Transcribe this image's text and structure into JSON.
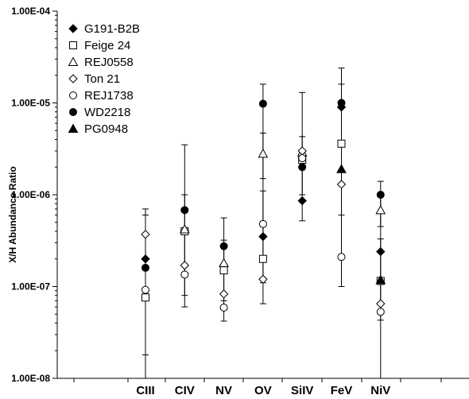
{
  "chart_data": {
    "type": "scatter",
    "ylabel": "X/H Abundance Ratio",
    "xlabel": "",
    "yscale": "log",
    "ylim": [
      1e-08,
      0.0001
    ],
    "y_tick_labels": [
      "1.00E-08",
      "1.00E-07",
      "1.00E-06",
      "1.00E-05",
      "1.00E-04"
    ],
    "categories": [
      "CIII",
      "CIV",
      "NV",
      "OV",
      "SiIV",
      "FeV",
      "NiV"
    ],
    "legend_position": "top-left",
    "error_bars": [
      {
        "category": "CIII",
        "low": 1.8e-08,
        "high": 7e-07
      },
      {
        "category": "CIII",
        "low": 1e-08,
        "high": 6e-07
      },
      {
        "category": "CIV",
        "low": 6e-08,
        "high": 3.5e-06
      },
      {
        "category": "CIV",
        "low": 8e-08,
        "high": 1e-06
      },
      {
        "category": "NV",
        "low": 4.2e-08,
        "high": 5.6e-07
      },
      {
        "category": "NV",
        "low": 7e-08,
        "high": 3.2e-07
      },
      {
        "category": "OV",
        "low": 6.5e-08,
        "high": 1.6e-05
      },
      {
        "category": "OV",
        "low": 1.1e-07,
        "high": 1.1e-06
      },
      {
        "category": "OV",
        "low": 1.5e-06,
        "high": 4.7e-06
      },
      {
        "category": "SiIV",
        "low": 5.2e-07,
        "high": 1.3e-05
      },
      {
        "category": "SiIV",
        "low": 1e-06,
        "high": 4.3e-06
      },
      {
        "category": "FeV",
        "low": 1e-07,
        "high": 2.4e-05
      },
      {
        "category": "FeV",
        "low": 6e-07,
        "high": 1.6e-05
      },
      {
        "category": "NiV",
        "low": 1e-08,
        "high": 1.4e-06
      },
      {
        "category": "NiV",
        "low": 4.3e-08,
        "high": 3.3e-07
      },
      {
        "category": "NiV",
        "low": 4.5e-07,
        "high": 9.5e-07
      }
    ],
    "series": [
      {
        "name": "G191-B2B",
        "marker": "diamond",
        "fill": "#000000",
        "points": [
          [
            "CIII",
            2e-07
          ],
          [
            "CIV",
            4e-07
          ],
          [
            "NV",
            1.7e-07
          ],
          [
            "OV",
            3.5e-07
          ],
          [
            "SiIV",
            8.6e-07
          ],
          [
            "FeV",
            9e-06
          ],
          [
            "NiV",
            2.4e-07
          ]
        ]
      },
      {
        "name": "Feige 24",
        "marker": "square",
        "fill": "#ffffff",
        "points": [
          [
            "CIII",
            7.6e-08
          ],
          [
            "CIV",
            4e-07
          ],
          [
            "NV",
            1.5e-07
          ],
          [
            "OV",
            2e-07
          ],
          [
            "SiIV",
            2.4e-06
          ],
          [
            "FeV",
            3.6e-06
          ],
          [
            "NiV",
            1.15e-07
          ]
        ]
      },
      {
        "name": "REJ0558",
        "marker": "triangle",
        "fill": "#ffffff",
        "points": [
          [
            "CIV",
            4.2e-07
          ],
          [
            "NV",
            1.8e-07
          ],
          [
            "OV",
            2.8e-06
          ],
          [
            "SiIV",
            2.9e-06
          ],
          [
            "NiV",
            6.8e-07
          ]
        ]
      },
      {
        "name": "Ton 21",
        "marker": "diamond",
        "fill": "#ffffff",
        "points": [
          [
            "CIII",
            3.7e-07
          ],
          [
            "CIV",
            1.7e-07
          ],
          [
            "NV",
            8.3e-08
          ],
          [
            "OV",
            1.2e-07
          ],
          [
            "SiIV",
            3e-06
          ],
          [
            "FeV",
            1.3e-06
          ],
          [
            "NiV",
            6.5e-08
          ]
        ]
      },
      {
        "name": "REJ1738",
        "marker": "circle",
        "fill": "#ffffff",
        "points": [
          [
            "CIII",
            9.2e-08
          ],
          [
            "CIV",
            1.35e-07
          ],
          [
            "NV",
            5.9e-08
          ],
          [
            "OV",
            4.8e-07
          ],
          [
            "SiIV",
            2.5e-06
          ],
          [
            "FeV",
            2.1e-07
          ],
          [
            "NiV",
            5.3e-08
          ]
        ]
      },
      {
        "name": "WD2218",
        "marker": "circle",
        "fill": "#000000",
        "points": [
          [
            "CIII",
            1.6e-07
          ],
          [
            "CIV",
            6.8e-07
          ],
          [
            "NV",
            2.75e-07
          ],
          [
            "OV",
            9.8e-06
          ],
          [
            "SiIV",
            2e-06
          ],
          [
            "FeV",
            1e-05
          ],
          [
            "NiV",
            1e-06
          ]
        ]
      },
      {
        "name": "PG0948",
        "marker": "triangle",
        "fill": "#000000",
        "points": [
          [
            "FeV",
            1.9e-06
          ],
          [
            "NiV",
            1.18e-07
          ]
        ]
      }
    ]
  }
}
